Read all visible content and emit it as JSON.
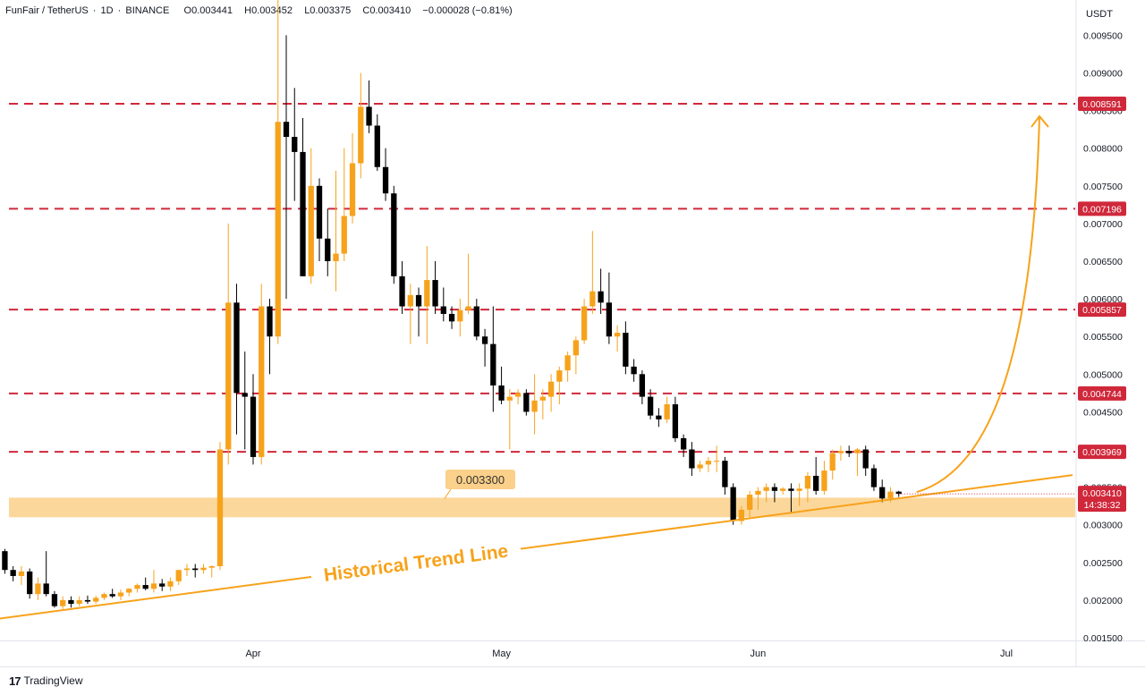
{
  "header": {
    "symbol": "FunFair / TetherUS",
    "interval": "1D",
    "exchange": "BINANCE",
    "open": "O0.003441",
    "high": "H0.003452",
    "low": "L0.003375",
    "close": "C0.003410",
    "change": "−0.000028 (−0.81%)"
  },
  "footer": {
    "brand": "TradingView"
  },
  "colors": {
    "bull": "#f7a21b",
    "bear": "#000000",
    "resistance": "#d0283b",
    "trend": "#f7a21b",
    "zone": "#fbd08a"
  },
  "chart_data": {
    "type": "candlestick",
    "currency": "USDT",
    "y_range": [
      0.0015,
      0.0099
    ],
    "y_ticks": [
      "0.009500",
      "0.009000",
      "0.008500",
      "0.008000",
      "0.007500",
      "0.007000",
      "0.006500",
      "0.006000",
      "0.005500",
      "0.005000",
      "0.004500",
      "0.004000",
      "0.003500",
      "0.003000",
      "0.002500",
      "0.002000",
      "0.001500"
    ],
    "x_ticks": [
      {
        "label": "Apr",
        "date": "Apr 1"
      },
      {
        "label": "May",
        "date": "May 1"
      },
      {
        "label": "Jun",
        "date": "Jun 1"
      },
      {
        "label": "Jul",
        "date": "Jul 1"
      }
    ],
    "first_candle_date": "Mar 2",
    "resistance_levels": [
      "0.008591",
      "0.007196",
      "0.005857",
      "0.004744",
      "0.003969"
    ],
    "support_zone": {
      "low": 0.0031,
      "high": 0.00336,
      "label": "0.003300"
    },
    "trend_line": {
      "label": "Historical Trend Line",
      "from": {
        "date": "Feb 28",
        "value": 0.00172
      },
      "to": {
        "date": "Jul 9",
        "value": 0.00366
      }
    },
    "projection": "arrow curving up from current price toward 0.008591",
    "last_price": {
      "value": "0.003410",
      "countdown": "14:38:32"
    },
    "candles": [
      [
        0.00265,
        0.00268,
        0.00235,
        0.0024
      ],
      [
        0.0024,
        0.00245,
        0.00225,
        0.00232
      ],
      [
        0.00232,
        0.00245,
        0.0022,
        0.00238
      ],
      [
        0.00238,
        0.00242,
        0.00202,
        0.00208
      ],
      [
        0.00208,
        0.0023,
        0.002,
        0.00222
      ],
      [
        0.00222,
        0.00265,
        0.00205,
        0.00208
      ],
      [
        0.00208,
        0.00212,
        0.0019,
        0.00192
      ],
      [
        0.00192,
        0.00205,
        0.00188,
        0.002
      ],
      [
        0.002,
        0.00205,
        0.0019,
        0.00195
      ],
      [
        0.00195,
        0.00205,
        0.00192,
        0.002
      ],
      [
        0.002,
        0.00206,
        0.00195,
        0.00198
      ],
      [
        0.00198,
        0.00206,
        0.00195,
        0.00203
      ],
      [
        0.00203,
        0.0021,
        0.002,
        0.00208
      ],
      [
        0.00208,
        0.00215,
        0.00203,
        0.00205
      ],
      [
        0.00205,
        0.00214,
        0.002,
        0.0021
      ],
      [
        0.0021,
        0.00216,
        0.00205,
        0.00215
      ],
      [
        0.00215,
        0.00222,
        0.0021,
        0.0022
      ],
      [
        0.0022,
        0.0023,
        0.00213,
        0.00215
      ],
      [
        0.00215,
        0.0024,
        0.0021,
        0.00222
      ],
      [
        0.00222,
        0.00228,
        0.00212,
        0.00218
      ],
      [
        0.00218,
        0.0023,
        0.00212,
        0.00225
      ],
      [
        0.00225,
        0.0024,
        0.0022,
        0.0024
      ],
      [
        0.0024,
        0.00248,
        0.00232,
        0.00242
      ],
      [
        0.00242,
        0.00248,
        0.0023,
        0.0024
      ],
      [
        0.0024,
        0.00248,
        0.00235,
        0.00243
      ],
      [
        0.00243,
        0.00246,
        0.0023,
        0.00245
      ],
      [
        0.00245,
        0.0041,
        0.0024,
        0.004
      ],
      [
        0.004,
        0.007,
        0.0038,
        0.00595
      ],
      [
        0.00595,
        0.0062,
        0.0042,
        0.00475
      ],
      [
        0.00475,
        0.0053,
        0.004,
        0.0047
      ],
      [
        0.0047,
        0.005,
        0.0038,
        0.0039
      ],
      [
        0.0039,
        0.0062,
        0.0038,
        0.0059
      ],
      [
        0.0059,
        0.006,
        0.005,
        0.0055
      ],
      [
        0.0055,
        0.0102,
        0.0054,
        0.00835
      ],
      [
        0.00835,
        0.0095,
        0.006,
        0.00815
      ],
      [
        0.00815,
        0.0088,
        0.0073,
        0.00795
      ],
      [
        0.00795,
        0.0084,
        0.0063,
        0.0063
      ],
      [
        0.0063,
        0.008,
        0.0062,
        0.0075
      ],
      [
        0.0075,
        0.0076,
        0.0065,
        0.0068
      ],
      [
        0.0068,
        0.0072,
        0.0063,
        0.0065
      ],
      [
        0.0065,
        0.0077,
        0.0061,
        0.0066
      ],
      [
        0.0066,
        0.008,
        0.0065,
        0.0071
      ],
      [
        0.0071,
        0.0082,
        0.007,
        0.0078
      ],
      [
        0.0078,
        0.009,
        0.0076,
        0.00855
      ],
      [
        0.00855,
        0.0089,
        0.0082,
        0.0083
      ],
      [
        0.0083,
        0.00845,
        0.0077,
        0.00775
      ],
      [
        0.00775,
        0.008,
        0.0073,
        0.0074
      ],
      [
        0.0074,
        0.0075,
        0.0062,
        0.0063
      ],
      [
        0.0063,
        0.0065,
        0.0058,
        0.0059
      ],
      [
        0.0059,
        0.0062,
        0.0054,
        0.00605
      ],
      [
        0.00605,
        0.00615,
        0.0055,
        0.0059
      ],
      [
        0.0059,
        0.0067,
        0.0054,
        0.00625
      ],
      [
        0.00625,
        0.0065,
        0.0058,
        0.0059
      ],
      [
        0.0059,
        0.00615,
        0.0057,
        0.0058
      ],
      [
        0.0058,
        0.0059,
        0.0056,
        0.0057
      ],
      [
        0.0057,
        0.006,
        0.0055,
        0.00585
      ],
      [
        0.00585,
        0.0066,
        0.0058,
        0.0059
      ],
      [
        0.0059,
        0.006,
        0.00545,
        0.0055
      ],
      [
        0.0055,
        0.0056,
        0.0051,
        0.0054
      ],
      [
        0.0054,
        0.0059,
        0.0045,
        0.00485
      ],
      [
        0.00485,
        0.0051,
        0.0046,
        0.00465
      ],
      [
        0.00465,
        0.0048,
        0.004,
        0.0047
      ],
      [
        0.0047,
        0.0048,
        0.0046,
        0.00475
      ],
      [
        0.00475,
        0.0048,
        0.00445,
        0.0045
      ],
      [
        0.0045,
        0.005,
        0.0042,
        0.00465
      ],
      [
        0.00465,
        0.0048,
        0.0044,
        0.0047
      ],
      [
        0.0047,
        0.005,
        0.0045,
        0.0049
      ],
      [
        0.0049,
        0.0051,
        0.0046,
        0.00505
      ],
      [
        0.00505,
        0.0053,
        0.0049,
        0.00525
      ],
      [
        0.00525,
        0.0055,
        0.005,
        0.00545
      ],
      [
        0.00545,
        0.006,
        0.0054,
        0.0059
      ],
      [
        0.0059,
        0.0069,
        0.0058,
        0.0061
      ],
      [
        0.0061,
        0.0064,
        0.0058,
        0.00595
      ],
      [
        0.00595,
        0.00635,
        0.0054,
        0.0055
      ],
      [
        0.0055,
        0.00565,
        0.0053,
        0.00555
      ],
      [
        0.00555,
        0.0057,
        0.005,
        0.0051
      ],
      [
        0.0051,
        0.0052,
        0.0049,
        0.005
      ],
      [
        0.005,
        0.00505,
        0.0046,
        0.0047
      ],
      [
        0.0047,
        0.0048,
        0.0044,
        0.00445
      ],
      [
        0.00445,
        0.00455,
        0.0043,
        0.0044
      ],
      [
        0.0044,
        0.0047,
        0.00435,
        0.0046
      ],
      [
        0.0046,
        0.0047,
        0.0041,
        0.00415
      ],
      [
        0.00415,
        0.0042,
        0.0039,
        0.004
      ],
      [
        0.004,
        0.0041,
        0.00365,
        0.00375
      ],
      [
        0.00375,
        0.00385,
        0.0037,
        0.0038
      ],
      [
        0.0038,
        0.0039,
        0.0037,
        0.00385
      ],
      [
        0.00385,
        0.00405,
        0.0037,
        0.00385
      ],
      [
        0.00385,
        0.0039,
        0.0034,
        0.0035
      ],
      [
        0.0035,
        0.00355,
        0.003,
        0.00305
      ],
      [
        0.00305,
        0.00325,
        0.003,
        0.0032
      ],
      [
        0.0032,
        0.00345,
        0.0031,
        0.0034
      ],
      [
        0.0034,
        0.0035,
        0.0032,
        0.00345
      ],
      [
        0.00345,
        0.00355,
        0.0033,
        0.0035
      ],
      [
        0.0035,
        0.00355,
        0.0033,
        0.00345
      ],
      [
        0.00345,
        0.0035,
        0.0034,
        0.00348
      ],
      [
        0.00348,
        0.00355,
        0.00315,
        0.00345
      ],
      [
        0.00345,
        0.00355,
        0.00325,
        0.00348
      ],
      [
        0.00348,
        0.0037,
        0.0033,
        0.00365
      ],
      [
        0.00365,
        0.0039,
        0.0034,
        0.00345
      ],
      [
        0.00345,
        0.00385,
        0.0034,
        0.00372
      ],
      [
        0.00372,
        0.004,
        0.0036,
        0.00395
      ],
      [
        0.00395,
        0.00405,
        0.00385,
        0.00398
      ],
      [
        0.00398,
        0.00405,
        0.0039,
        0.00395
      ],
      [
        0.00395,
        0.00402,
        0.00365,
        0.004
      ],
      [
        0.004,
        0.00405,
        0.00365,
        0.00375
      ],
      [
        0.00375,
        0.0038,
        0.00345,
        0.0035
      ],
      [
        0.0035,
        0.0036,
        0.0033,
        0.00335
      ],
      [
        0.00335,
        0.0035,
        0.0033,
        0.00344
      ],
      [
        0.00344,
        0.00345,
        0.00337,
        0.00341
      ]
    ]
  }
}
